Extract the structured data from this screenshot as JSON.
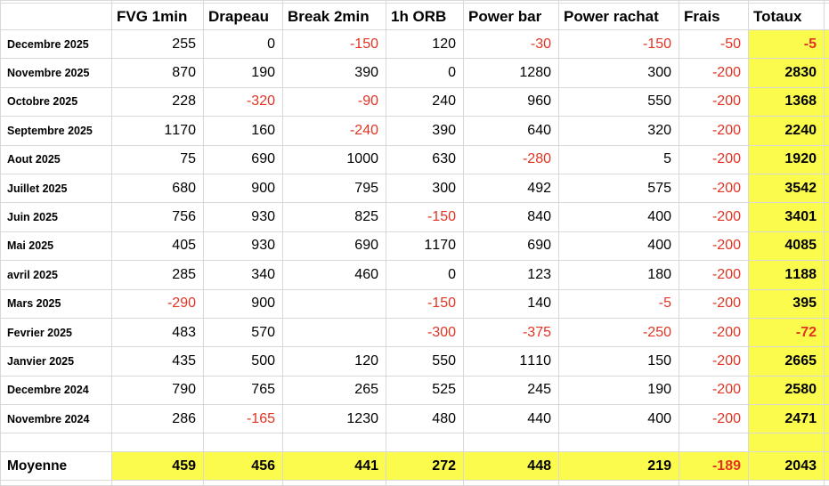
{
  "table": {
    "headers": [
      "",
      "FVG 1min",
      "Drapeau",
      "Break 2min",
      "1h ORB",
      "Power bar",
      "Power rachat",
      "Frais",
      "Totaux",
      ""
    ],
    "rows": [
      {
        "label": "Decembre 2025",
        "values": [
          255,
          0,
          -150,
          120,
          -30,
          -150,
          -50,
          -5
        ]
      },
      {
        "label": "Novembre 2025",
        "values": [
          870,
          190,
          390,
          0,
          1280,
          300,
          -200,
          2830
        ]
      },
      {
        "label": "Octobre 2025",
        "values": [
          228,
          -320,
          -90,
          240,
          960,
          550,
          -200,
          1368
        ]
      },
      {
        "label": "Septembre 2025",
        "values": [
          1170,
          160,
          -240,
          390,
          640,
          320,
          -200,
          2240
        ]
      },
      {
        "label": "Aout 2025",
        "values": [
          75,
          690,
          1000,
          630,
          -280,
          5,
          -200,
          1920
        ]
      },
      {
        "label": "Juillet 2025",
        "values": [
          680,
          900,
          795,
          300,
          492,
          575,
          -200,
          3542
        ]
      },
      {
        "label": "Juin 2025",
        "values": [
          756,
          930,
          825,
          -150,
          840,
          400,
          -200,
          3401
        ]
      },
      {
        "label": "Mai 2025",
        "values": [
          405,
          930,
          690,
          1170,
          690,
          400,
          -200,
          4085
        ]
      },
      {
        "label": "avril 2025",
        "values": [
          285,
          340,
          460,
          0,
          123,
          180,
          -200,
          1188
        ]
      },
      {
        "label": "Mars 2025",
        "values": [
          -290,
          900,
          "",
          -150,
          140,
          -5,
          -200,
          395
        ]
      },
      {
        "label": "Fevrier 2025",
        "values": [
          483,
          570,
          "",
          -300,
          -375,
          -250,
          -200,
          -72
        ]
      },
      {
        "label": "Janvier 2025",
        "values": [
          435,
          500,
          120,
          550,
          1110,
          150,
          -200,
          2665
        ]
      },
      {
        "label": "Decembre 2024",
        "values": [
          790,
          765,
          265,
          525,
          245,
          190,
          -200,
          2580
        ]
      },
      {
        "label": "Novembre 2024",
        "values": [
          286,
          -165,
          1230,
          480,
          440,
          400,
          -200,
          2471
        ]
      }
    ],
    "summary": {
      "label": "Moyenne",
      "values": [
        459,
        456,
        441,
        272,
        448,
        219,
        -189,
        2043
      ]
    }
  },
  "colors": {
    "highlight_yellow": "#FBFB4D",
    "negative_red": "#E23323",
    "grid_line": "#D9D9D9",
    "text_black": "#000000"
  }
}
